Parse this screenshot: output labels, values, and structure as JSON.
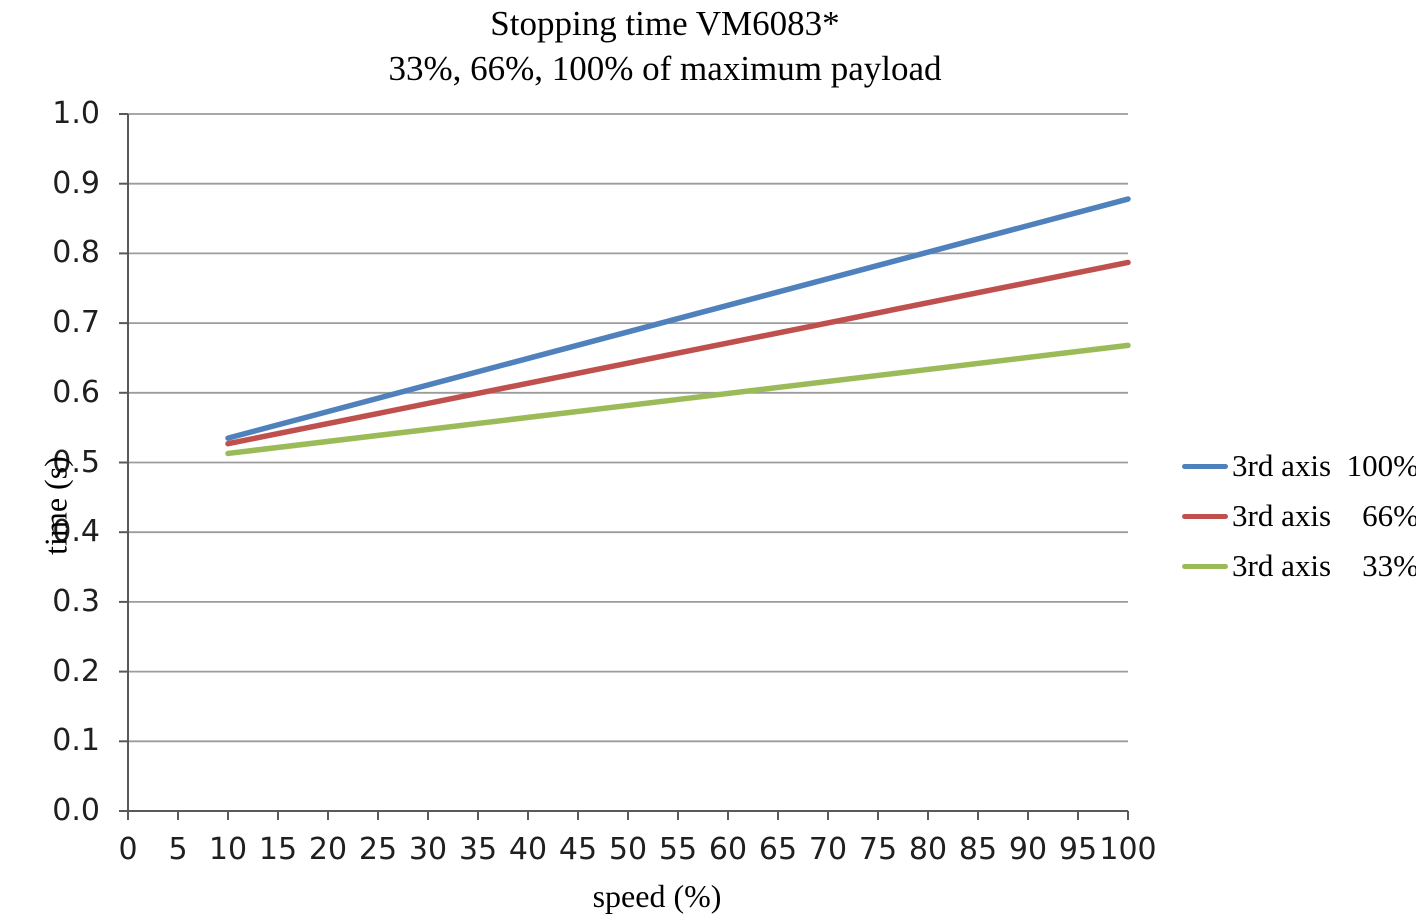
{
  "chart_data": {
    "type": "line",
    "title": "Stopping time VM6083*",
    "subtitle": "33%, 66%, 100% of maximum payload",
    "xlabel": "speed (%)",
    "ylabel": "time (s)",
    "xlim": [
      0,
      100
    ],
    "ylim": [
      0.0,
      1.0
    ],
    "x_ticks": [
      0,
      5,
      10,
      15,
      20,
      25,
      30,
      35,
      40,
      45,
      50,
      55,
      60,
      65,
      70,
      75,
      80,
      85,
      90,
      95,
      100
    ],
    "y_ticks": [
      0.0,
      0.1,
      0.2,
      0.3,
      0.4,
      0.5,
      0.6,
      0.7,
      0.8,
      0.9,
      1.0
    ],
    "grid": "horizontal",
    "legend_position": "right",
    "series": [
      {
        "name": "3rd axis",
        "pct": "100%",
        "label": "3rd axis 100%",
        "color": "#4F81BD",
        "points": [
          {
            "x": 10,
            "y": 0.535
          },
          {
            "x": 100,
            "y": 0.878
          }
        ]
      },
      {
        "name": "3rd axis",
        "pct": "66%",
        "label": "3rd axis 66%",
        "color": "#C0504D",
        "points": [
          {
            "x": 10,
            "y": 0.527
          },
          {
            "x": 100,
            "y": 0.787
          }
        ]
      },
      {
        "name": "3rd axis",
        "pct": "33%",
        "label": "3rd axis 33%",
        "color": "#9BBB59",
        "points": [
          {
            "x": 10,
            "y": 0.513
          },
          {
            "x": 100,
            "y": 0.668
          }
        ]
      }
    ],
    "colors": {
      "grid": "#9c9c9c",
      "axis": "#595959",
      "tick_text": "#1f1f1f"
    }
  }
}
